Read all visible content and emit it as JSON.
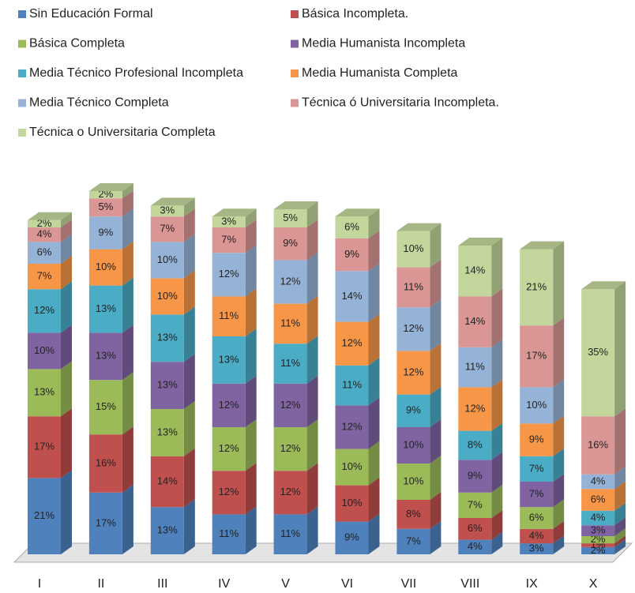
{
  "chart_data": {
    "type": "bar",
    "stacked": true,
    "categories": [
      "I",
      "II",
      "III",
      "IV",
      "V",
      "VI",
      "VII",
      "VIII",
      "IX",
      "X"
    ],
    "series": [
      {
        "name": "Sin Educación Formal",
        "color": "#4f81bd",
        "values": [
          21,
          17,
          13,
          11,
          11,
          9,
          7,
          4,
          3,
          2
        ],
        "value_labels": [
          "21%",
          "17%",
          "13%",
          "11%",
          "11%",
          "9%",
          "7%",
          "4%",
          "3%",
          "2%"
        ]
      },
      {
        "name": "Básica Incompleta.",
        "color": "#c0504d",
        "values": [
          17,
          16,
          14,
          12,
          12,
          10,
          8,
          6,
          4,
          1
        ],
        "value_labels": [
          "17%",
          "16%",
          "14%",
          "12%",
          "12%",
          "10%",
          "8%",
          "6%",
          "4%",
          "1%"
        ]
      },
      {
        "name": "Básica Completa",
        "color": "#9bbb59",
        "values": [
          13,
          15,
          13,
          12,
          12,
          10,
          10,
          7,
          6,
          2
        ],
        "value_labels": [
          "13%",
          "15%",
          "13%",
          "12%",
          "12%",
          "10%",
          "10%",
          "7%",
          "6%",
          "2%"
        ]
      },
      {
        "name": "Media Humanista Incompleta",
        "color": "#8064a2",
        "values": [
          10,
          13,
          13,
          12,
          12,
          12,
          10,
          9,
          7,
          3
        ],
        "value_labels": [
          "10%",
          "13%",
          "13%",
          "12%",
          "12%",
          "12%",
          "10%",
          "9%",
          "7%",
          "3%"
        ]
      },
      {
        "name": "Media Técnico Profesional Incompleta",
        "color": "#4bacc6",
        "values": [
          12,
          13,
          13,
          13,
          11,
          11,
          9,
          8,
          7,
          4
        ],
        "value_labels": [
          "12%",
          "13%",
          "13%",
          "13%",
          "11%",
          "11%",
          "9%",
          "8%",
          "7%",
          "4%"
        ]
      },
      {
        "name": "Media Humanista Completa",
        "color": "#f79646",
        "values": [
          7,
          10,
          10,
          11,
          11,
          12,
          12,
          12,
          9,
          6
        ],
        "value_labels": [
          "7%",
          "10%",
          "10%",
          "11%",
          "11%",
          "12%",
          "12%",
          "12%",
          "9%",
          "6%"
        ]
      },
      {
        "name": "Media Técnico Completa",
        "color": "#95b3d7",
        "values": [
          6,
          9,
          10,
          12,
          12,
          14,
          12,
          11,
          10,
          4
        ],
        "value_labels": [
          "6%",
          "9%",
          "10%",
          "12%",
          "12%",
          "14%",
          "12%",
          "11%",
          "10%",
          "4%"
        ]
      },
      {
        "name": "Técnica ó Universitaria Incompleta.",
        "color": "#d99694",
        "values": [
          4,
          5,
          7,
          7,
          9,
          9,
          11,
          14,
          17,
          16
        ],
        "value_labels": [
          "4%",
          "5%",
          "7%",
          "7%",
          "9%",
          "9%",
          "11%",
          "14%",
          "17%",
          "16%"
        ]
      },
      {
        "name": "Técnica  o Universitaria Completa",
        "color": "#c3d69b",
        "values": [
          2,
          2,
          3,
          3,
          5,
          6,
          10,
          14,
          21,
          35
        ],
        "value_labels": [
          "2%",
          "2%",
          "3%",
          "3%",
          "5%",
          "6%",
          "10%",
          "14%",
          "21%",
          "35%"
        ]
      }
    ],
    "legend": "top"
  }
}
